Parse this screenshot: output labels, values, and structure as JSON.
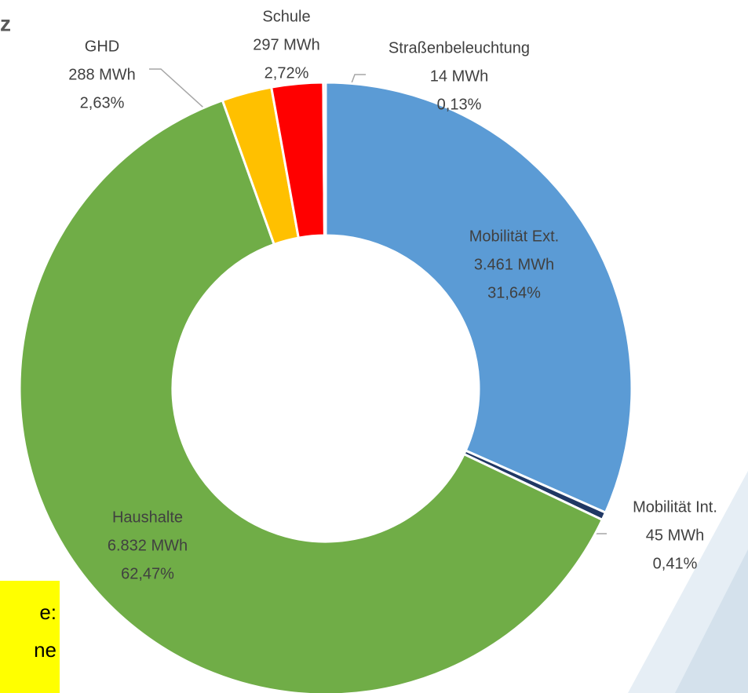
{
  "chart_data": {
    "type": "pie",
    "donut": true,
    "title": "z",
    "note_lines": [
      "e:",
      "ne"
    ],
    "categories": [
      "Mobilität Ext.",
      "Mobilität Int.",
      "Haushalte",
      "GHD",
      "Schule",
      "Straßenbeleuchtung"
    ],
    "values": [
      3461,
      45,
      6832,
      288,
      297,
      14
    ],
    "value_labels": [
      "3.461 MWh",
      "45 MWh",
      "6.832 MWh",
      "288 MWh",
      "297 MWh",
      "14 MWh"
    ],
    "percentages": [
      31.64,
      0.41,
      62.47,
      2.63,
      2.72,
      0.13
    ],
    "percentage_labels": [
      "31,64%",
      "0,41%",
      "62,47%",
      "2,63%",
      "2,72%",
      "0,13%"
    ],
    "colors": [
      "#5b9bd5",
      "#203864",
      "#70ad47",
      "#ffc000",
      "#ff0000",
      "#a5a5a5"
    ]
  }
}
